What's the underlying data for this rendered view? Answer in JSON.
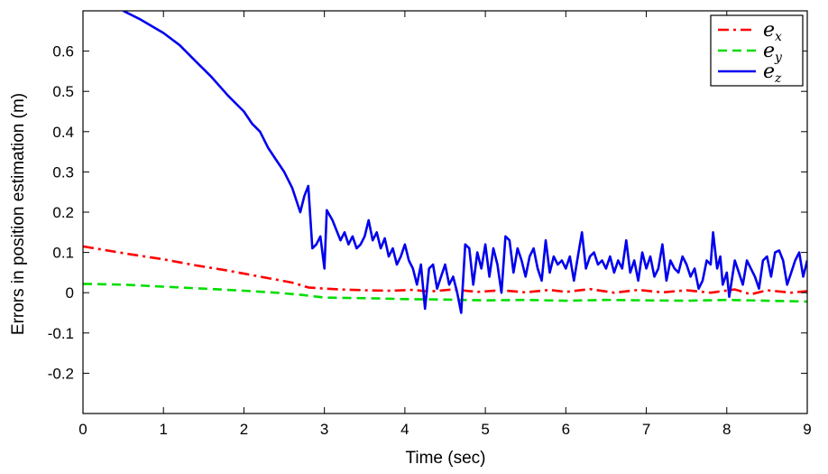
{
  "chart_data": {
    "type": "line",
    "xlabel": "Time (sec)",
    "ylabel": "Errors in position estimation (m)",
    "xlim": [
      0,
      9
    ],
    "ylim": [
      -0.3,
      0.7
    ],
    "xticks": [
      0,
      1,
      2,
      3,
      4,
      5,
      6,
      7,
      8,
      9
    ],
    "yticks": [
      -0.2,
      -0.1,
      0,
      0.1,
      0.2,
      0.3,
      0.4,
      0.5,
      0.6
    ],
    "ytick_labels": [
      "-0.2",
      "-0.1",
      "0",
      "0.1",
      "0.2",
      "0.3",
      "0.4",
      "0.5",
      "0.6"
    ],
    "grid": false,
    "legend_position": "top-right",
    "series": [
      {
        "name": "e",
        "subscript": "x",
        "color": "#ff0000",
        "style": "dash-dot",
        "points": [
          [
            0,
            0.115
          ],
          [
            0.3,
            0.105
          ],
          [
            0.6,
            0.095
          ],
          [
            1.0,
            0.083
          ],
          [
            1.4,
            0.068
          ],
          [
            1.8,
            0.055
          ],
          [
            2.2,
            0.04
          ],
          [
            2.6,
            0.025
          ],
          [
            2.8,
            0.013
          ],
          [
            3.0,
            0.01
          ],
          [
            3.2,
            0.008
          ],
          [
            3.5,
            0.006
          ],
          [
            3.8,
            0.005
          ],
          [
            4.1,
            0.007
          ],
          [
            4.3,
            0.003
          ],
          [
            4.6,
            0.008
          ],
          [
            4.9,
            0.002
          ],
          [
            5.2,
            0.006
          ],
          [
            5.5,
            0.001
          ],
          [
            5.8,
            0.007
          ],
          [
            6.0,
            0.002
          ],
          [
            6.3,
            0.009
          ],
          [
            6.6,
            0.0
          ],
          [
            6.9,
            0.007
          ],
          [
            7.2,
            0.001
          ],
          [
            7.5,
            0.006
          ],
          [
            7.8,
            0.0
          ],
          [
            8.1,
            0.008
          ],
          [
            8.3,
            -0.004
          ],
          [
            8.5,
            0.006
          ],
          [
            8.8,
            0.0
          ],
          [
            9.0,
            0.004
          ]
        ]
      },
      {
        "name": "e",
        "subscript": "y",
        "color": "#00dd00",
        "style": "dashed",
        "points": [
          [
            0,
            0.022
          ],
          [
            0.5,
            0.02
          ],
          [
            1.0,
            0.015
          ],
          [
            1.5,
            0.01
          ],
          [
            2.0,
            0.005
          ],
          [
            2.4,
            0.0
          ],
          [
            2.7,
            -0.005
          ],
          [
            3.0,
            -0.012
          ],
          [
            3.3,
            -0.013
          ],
          [
            3.6,
            -0.014
          ],
          [
            4.0,
            -0.016
          ],
          [
            4.5,
            -0.017
          ],
          [
            5.0,
            -0.019
          ],
          [
            5.5,
            -0.018
          ],
          [
            6.0,
            -0.02
          ],
          [
            6.5,
            -0.018
          ],
          [
            7.0,
            -0.019
          ],
          [
            7.5,
            -0.02
          ],
          [
            8.0,
            -0.018
          ],
          [
            8.5,
            -0.02
          ],
          [
            9.0,
            -0.022
          ]
        ]
      },
      {
        "name": "e",
        "subscript": "z",
        "color": "#0000ee",
        "style": "solid",
        "points": [
          [
            0.5,
            0.7
          ],
          [
            0.7,
            0.68
          ],
          [
            1.0,
            0.645
          ],
          [
            1.2,
            0.615
          ],
          [
            1.4,
            0.575
          ],
          [
            1.6,
            0.535
          ],
          [
            1.8,
            0.49
          ],
          [
            2.0,
            0.45
          ],
          [
            2.1,
            0.42
          ],
          [
            2.2,
            0.4
          ],
          [
            2.3,
            0.36
          ],
          [
            2.4,
            0.33
          ],
          [
            2.5,
            0.3
          ],
          [
            2.6,
            0.26
          ],
          [
            2.7,
            0.2
          ],
          [
            2.75,
            0.24
          ],
          [
            2.8,
            0.265
          ],
          [
            2.85,
            0.11
          ],
          [
            2.9,
            0.12
          ],
          [
            2.95,
            0.14
          ],
          [
            3.0,
            0.06
          ],
          [
            3.03,
            0.205
          ],
          [
            3.1,
            0.18
          ],
          [
            3.2,
            0.13
          ],
          [
            3.25,
            0.15
          ],
          [
            3.3,
            0.12
          ],
          [
            3.35,
            0.14
          ],
          [
            3.4,
            0.11
          ],
          [
            3.45,
            0.12
          ],
          [
            3.5,
            0.14
          ],
          [
            3.55,
            0.18
          ],
          [
            3.6,
            0.13
          ],
          [
            3.65,
            0.15
          ],
          [
            3.7,
            0.11
          ],
          [
            3.75,
            0.135
          ],
          [
            3.8,
            0.09
          ],
          [
            3.85,
            0.11
          ],
          [
            3.9,
            0.07
          ],
          [
            3.95,
            0.09
          ],
          [
            4.0,
            0.12
          ],
          [
            4.05,
            0.08
          ],
          [
            4.1,
            0.06
          ],
          [
            4.15,
            0.02
          ],
          [
            4.2,
            0.07
          ],
          [
            4.25,
            -0.04
          ],
          [
            4.3,
            0.06
          ],
          [
            4.35,
            0.07
          ],
          [
            4.4,
            0.01
          ],
          [
            4.45,
            0.04
          ],
          [
            4.5,
            0.07
          ],
          [
            4.55,
            0.02
          ],
          [
            4.6,
            0.04
          ],
          [
            4.65,
            0.0
          ],
          [
            4.7,
            -0.05
          ],
          [
            4.75,
            0.12
          ],
          [
            4.8,
            0.11
          ],
          [
            4.85,
            0.02
          ],
          [
            4.9,
            0.1
          ],
          [
            4.95,
            0.06
          ],
          [
            5.0,
            0.12
          ],
          [
            5.05,
            0.04
          ],
          [
            5.1,
            0.11
          ],
          [
            5.15,
            0.07
          ],
          [
            5.2,
            0.0
          ],
          [
            5.25,
            0.14
          ],
          [
            5.3,
            0.13
          ],
          [
            5.35,
            0.05
          ],
          [
            5.4,
            0.11
          ],
          [
            5.45,
            0.08
          ],
          [
            5.5,
            0.04
          ],
          [
            5.55,
            0.09
          ],
          [
            5.6,
            0.11
          ],
          [
            5.65,
            0.06
          ],
          [
            5.7,
            0.03
          ],
          [
            5.75,
            0.13
          ],
          [
            5.8,
            0.05
          ],
          [
            5.85,
            0.09
          ],
          [
            5.9,
            0.07
          ],
          [
            5.95,
            0.08
          ],
          [
            6.0,
            0.06
          ],
          [
            6.05,
            0.09
          ],
          [
            6.1,
            0.03
          ],
          [
            6.15,
            0.09
          ],
          [
            6.2,
            0.15
          ],
          [
            6.25,
            0.06
          ],
          [
            6.3,
            0.09
          ],
          [
            6.35,
            0.1
          ],
          [
            6.4,
            0.07
          ],
          [
            6.45,
            0.08
          ],
          [
            6.5,
            0.06
          ],
          [
            6.55,
            0.09
          ],
          [
            6.6,
            0.05
          ],
          [
            6.65,
            0.08
          ],
          [
            6.7,
            0.06
          ],
          [
            6.75,
            0.13
          ],
          [
            6.8,
            0.05
          ],
          [
            6.85,
            0.08
          ],
          [
            6.9,
            0.03
          ],
          [
            6.95,
            0.1
          ],
          [
            7.0,
            0.06
          ],
          [
            7.05,
            0.09
          ],
          [
            7.1,
            0.04
          ],
          [
            7.15,
            0.06
          ],
          [
            7.2,
            0.12
          ],
          [
            7.25,
            0.03
          ],
          [
            7.3,
            0.08
          ],
          [
            7.35,
            0.06
          ],
          [
            7.4,
            0.05
          ],
          [
            7.45,
            0.09
          ],
          [
            7.5,
            0.07
          ],
          [
            7.55,
            0.04
          ],
          [
            7.6,
            0.06
          ],
          [
            7.65,
            0.01
          ],
          [
            7.7,
            0.03
          ],
          [
            7.75,
            0.08
          ],
          [
            7.8,
            0.07
          ],
          [
            7.83,
            0.15
          ],
          [
            7.88,
            0.06
          ],
          [
            7.92,
            0.09
          ],
          [
            7.95,
            0.02
          ],
          [
            8.0,
            0.05
          ],
          [
            8.03,
            -0.01
          ],
          [
            8.1,
            0.08
          ],
          [
            8.15,
            0.05
          ],
          [
            8.2,
            0.02
          ],
          [
            8.25,
            0.08
          ],
          [
            8.3,
            0.06
          ],
          [
            8.35,
            0.04
          ],
          [
            8.4,
            0.01
          ],
          [
            8.45,
            0.08
          ],
          [
            8.5,
            0.09
          ],
          [
            8.55,
            0.04
          ],
          [
            8.6,
            0.1
          ],
          [
            8.65,
            0.105
          ],
          [
            8.7,
            0.08
          ],
          [
            8.75,
            0.02
          ],
          [
            8.8,
            0.05
          ],
          [
            8.85,
            0.08
          ],
          [
            8.9,
            0.1
          ],
          [
            8.95,
            0.04
          ],
          [
            9.0,
            0.08
          ]
        ]
      }
    ]
  }
}
